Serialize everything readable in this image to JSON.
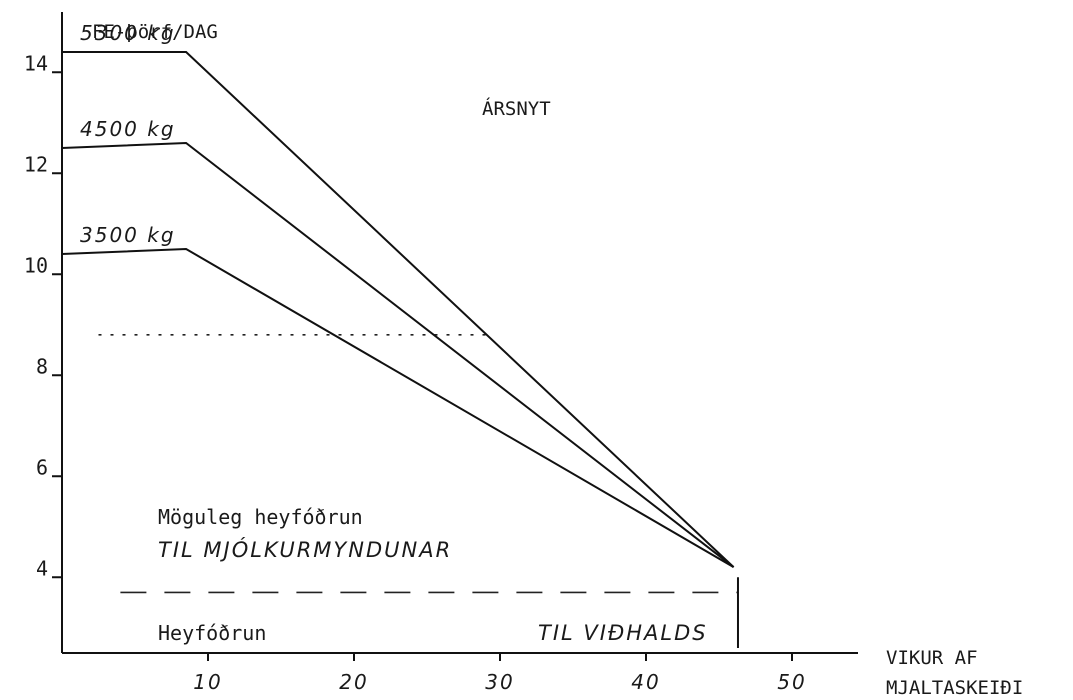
{
  "chart_data": {
    "type": "line",
    "ylabel": "FE-þörf/DAG",
    "xlabel_line1": "VIKUR AF",
    "xlabel_line2": "MJALTASKEIÐI",
    "annotation_top": "ÁRSNYT",
    "annotation_mid_1": "Möguleg heyfóðrun",
    "annotation_mid_2": "TIL MJÓLKURMYNDUNAR",
    "annotation_bottom_left": "Heyfóðrun",
    "annotation_bottom_right": "TIL VIÐHALDS",
    "xlim": [
      0,
      55
    ],
    "ylim": [
      2.5,
      17
    ],
    "x_ticks": [
      10,
      20,
      30,
      40,
      50
    ],
    "y_ticks": [
      4,
      6,
      8,
      10,
      12,
      14
    ],
    "series": [
      {
        "name": "5300 kg",
        "points": [
          [
            0,
            14.4
          ],
          [
            8.5,
            14.4
          ],
          [
            46,
            4.2
          ]
        ]
      },
      {
        "name": "4500 kg",
        "points": [
          [
            0,
            12.5
          ],
          [
            8.5,
            12.6
          ],
          [
            46,
            4.2
          ]
        ]
      },
      {
        "name": "3500 kg",
        "points": [
          [
            0,
            10.4
          ],
          [
            8.5,
            10.5
          ],
          [
            46,
            4.2
          ]
        ]
      }
    ],
    "reference_lines": [
      {
        "style": "dotted",
        "y": 8.8,
        "x": [
          2.5,
          29.5
        ]
      },
      {
        "style": "dashed",
        "y": 3.7,
        "x": [
          4,
          46.3
        ]
      }
    ],
    "vertical_marker": {
      "x": 46.3,
      "y": [
        2.6,
        4.0
      ]
    }
  }
}
